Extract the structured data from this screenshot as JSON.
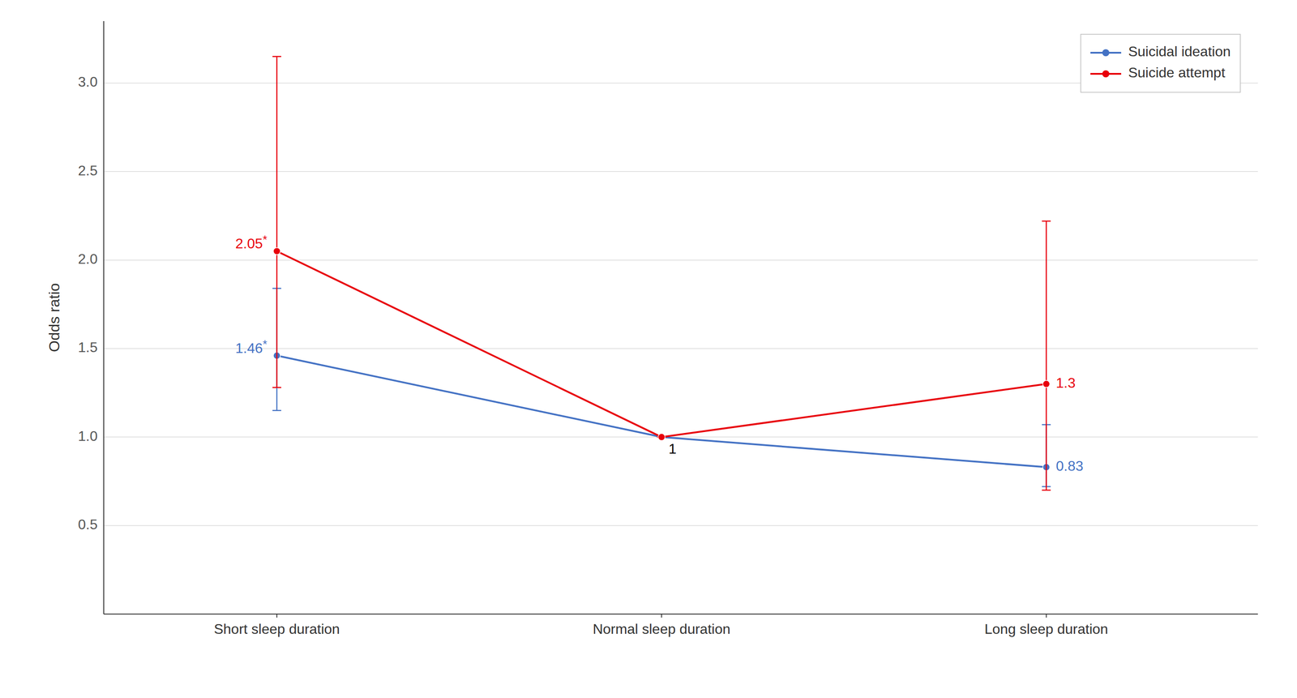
{
  "chart_data": {
    "type": "line",
    "categories": [
      "Short sleep duration",
      "Normal sleep duration",
      "Long sleep duration"
    ],
    "series": [
      {
        "name": "Suicidal ideation",
        "color": "#4472C4",
        "marker": "circle",
        "values": [
          1.46,
          1.0,
          0.83
        ],
        "ci_low": [
          1.15,
          1.0,
          0.72
        ],
        "ci_high": [
          1.84,
          1.0,
          1.07
        ],
        "value_labels": [
          "1.46*",
          null,
          "0.83"
        ]
      },
      {
        "name": "Suicide attempt",
        "color": "#E8000B",
        "marker": "circle",
        "values": [
          2.05,
          1.0,
          1.3
        ],
        "ci_low": [
          1.28,
          1.0,
          0.7
        ],
        "ci_high": [
          3.15,
          1.0,
          2.22
        ],
        "value_labels": [
          "2.05*",
          null,
          "1.3"
        ]
      }
    ],
    "annotations": [
      {
        "text": "1",
        "x": "Normal sleep duration",
        "y": 1.0
      }
    ],
    "ylabel": "Odds ratio",
    "ylim": [
      0.0,
      3.35
    ],
    "yticks": [
      0.5,
      {
        "value": 1.0,
        "label": "1.0"
      },
      1.5,
      {
        "value": 2.0,
        "label": "2.0"
      },
      2.5,
      {
        "value": 3.0,
        "label": "3.0"
      }
    ],
    "grid": true,
    "legend": "upper right",
    "data_labels": true
  }
}
